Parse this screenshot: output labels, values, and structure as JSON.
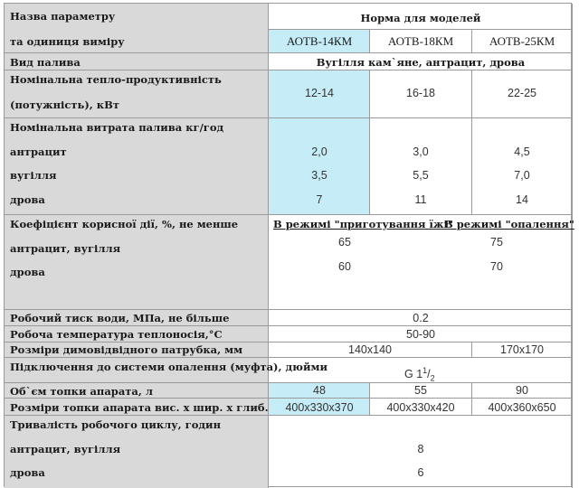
{
  "header": {
    "param_title_line1": "Назва параметру",
    "param_title_line2": "та одиниця виміру",
    "norm_title": "Норма для моделей",
    "models": [
      "АОТВ-14КМ",
      "АОТВ-18КМ",
      "АОТВ-25КМ"
    ]
  },
  "rows": {
    "fuel": {
      "label": "Вид палива",
      "value": "Вугілля кам`яне, антрацит, дрова"
    },
    "power": {
      "label_line1": "Номінальна тепло-продуктивність",
      "label_line2": "(потужність), кВт",
      "values": [
        "12-14",
        "16-18",
        "22-25"
      ]
    },
    "consumption": {
      "label": "Номінальна витрата палива кг/год",
      "sub": [
        "антрацит",
        "вугілля",
        "дрова"
      ],
      "values": [
        [
          "2,0",
          "3,0",
          "4,5"
        ],
        [
          "3,5",
          "5,5",
          "7,0"
        ],
        [
          "7",
          "11",
          "14"
        ]
      ]
    },
    "efficiency": {
      "label": "Коефіцієнт корисної дії, %, не менше",
      "sub": [
        "антрацит, вугілля",
        "дрова"
      ],
      "mode_cooking": "В режимі \"приготування їжі\"",
      "mode_heating": "В режимі \"опалення\"",
      "cooking_values": [
        "65",
        "60"
      ],
      "heating_values": [
        "75",
        "70"
      ]
    },
    "pressure": {
      "label": "Робочий тиск води, МПа, не більше",
      "value": "0.2"
    },
    "temperature": {
      "label": "Робоча температура теплоносія,°С",
      "value": "50-90"
    },
    "chimney": {
      "label": "Розміри димовідвідного патрубка, мм",
      "value_a": "140x140",
      "value_b": "170x170"
    },
    "connection": {
      "label": "Підключення до системи опалення (муфта), дюйми",
      "value_main": "G 1",
      "sup": "1",
      "sub": "2"
    },
    "volume": {
      "label": "Об`єм топки апарата, л",
      "values": [
        "48",
        "55",
        "90"
      ]
    },
    "firebox": {
      "label": "Розміри топки апарата вис. х шир. х глиб., мм",
      "values": [
        "400x330x370",
        "400x330x420",
        "400x360x650"
      ]
    },
    "cycle": {
      "label": "Тривалість робочого циклу, годин",
      "sub": [
        "антрацит, вугілля",
        "дрова"
      ],
      "values": [
        "8",
        "6"
      ]
    }
  }
}
